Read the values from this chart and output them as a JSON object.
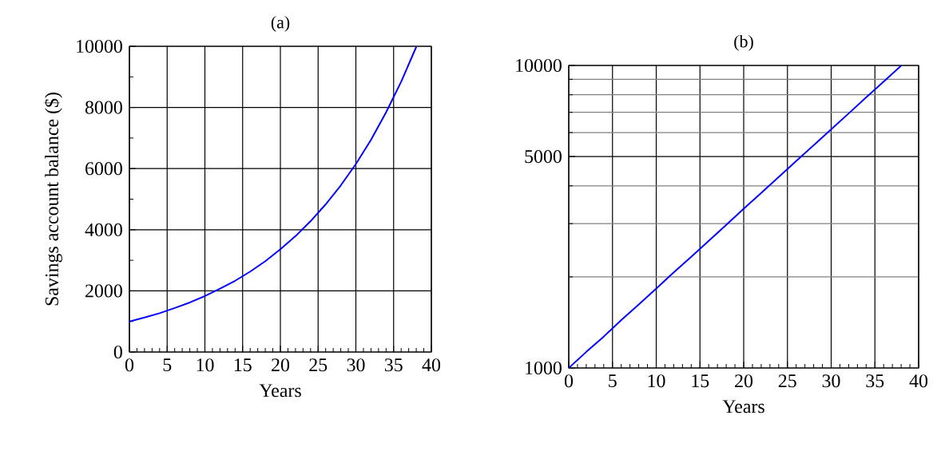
{
  "chart_data": [
    {
      "type": "line",
      "title": "(a)",
      "xlabel": "Years",
      "ylabel": "Savings account balance ($)",
      "x": [
        0,
        2,
        4,
        6,
        8,
        10,
        12,
        14,
        16,
        18,
        20,
        22,
        24,
        26,
        28,
        30,
        32,
        34,
        36,
        38
      ],
      "series": [
        {
          "color": "#0000ff",
          "values": [
            1000,
            1130,
            1270,
            1440,
            1620,
            1830,
            2070,
            2330,
            2630,
            2970,
            3360,
            3790,
            4280,
            4830,
            5450,
            6150,
            6940,
            7840,
            8840,
            9980
          ]
        }
      ],
      "xlim": [
        0,
        40
      ],
      "ylim": [
        0,
        10000
      ],
      "xticks": [
        0,
        5,
        10,
        15,
        20,
        25,
        30,
        35,
        40
      ],
      "yticks": [
        0,
        2000,
        4000,
        6000,
        8000,
        10000
      ],
      "grid": true
    },
    {
      "type": "line",
      "title": "(b)",
      "xlabel": "Years",
      "log": "y",
      "x": [
        0,
        2,
        4,
        6,
        8,
        10,
        12,
        14,
        16,
        18,
        20,
        22,
        24,
        26,
        28,
        30,
        32,
        34,
        36,
        38
      ],
      "series": [
        {
          "color": "#0000ff",
          "values": [
            1000,
            1130,
            1270,
            1440,
            1620,
            1830,
            2070,
            2330,
            2630,
            2970,
            3360,
            3790,
            4280,
            4830,
            5450,
            6150,
            6940,
            7840,
            8840,
            9980
          ]
        }
      ],
      "xlim": [
        0,
        40
      ],
      "ylim": [
        1000,
        10000
      ],
      "xticks": [
        0,
        5,
        10,
        15,
        20,
        25,
        30,
        35,
        40
      ],
      "yticks": [
        1000,
        {
          "value": 2000,
          "label": null
        },
        {
          "value": 3000,
          "label": null
        },
        {
          "value": 4000,
          "label": null
        },
        5000,
        {
          "value": 6000,
          "label": null
        },
        {
          "value": 7000,
          "label": null
        },
        {
          "value": 8000,
          "label": null
        },
        {
          "value": 9000,
          "label": null
        },
        10000
      ],
      "grid": true
    }
  ]
}
